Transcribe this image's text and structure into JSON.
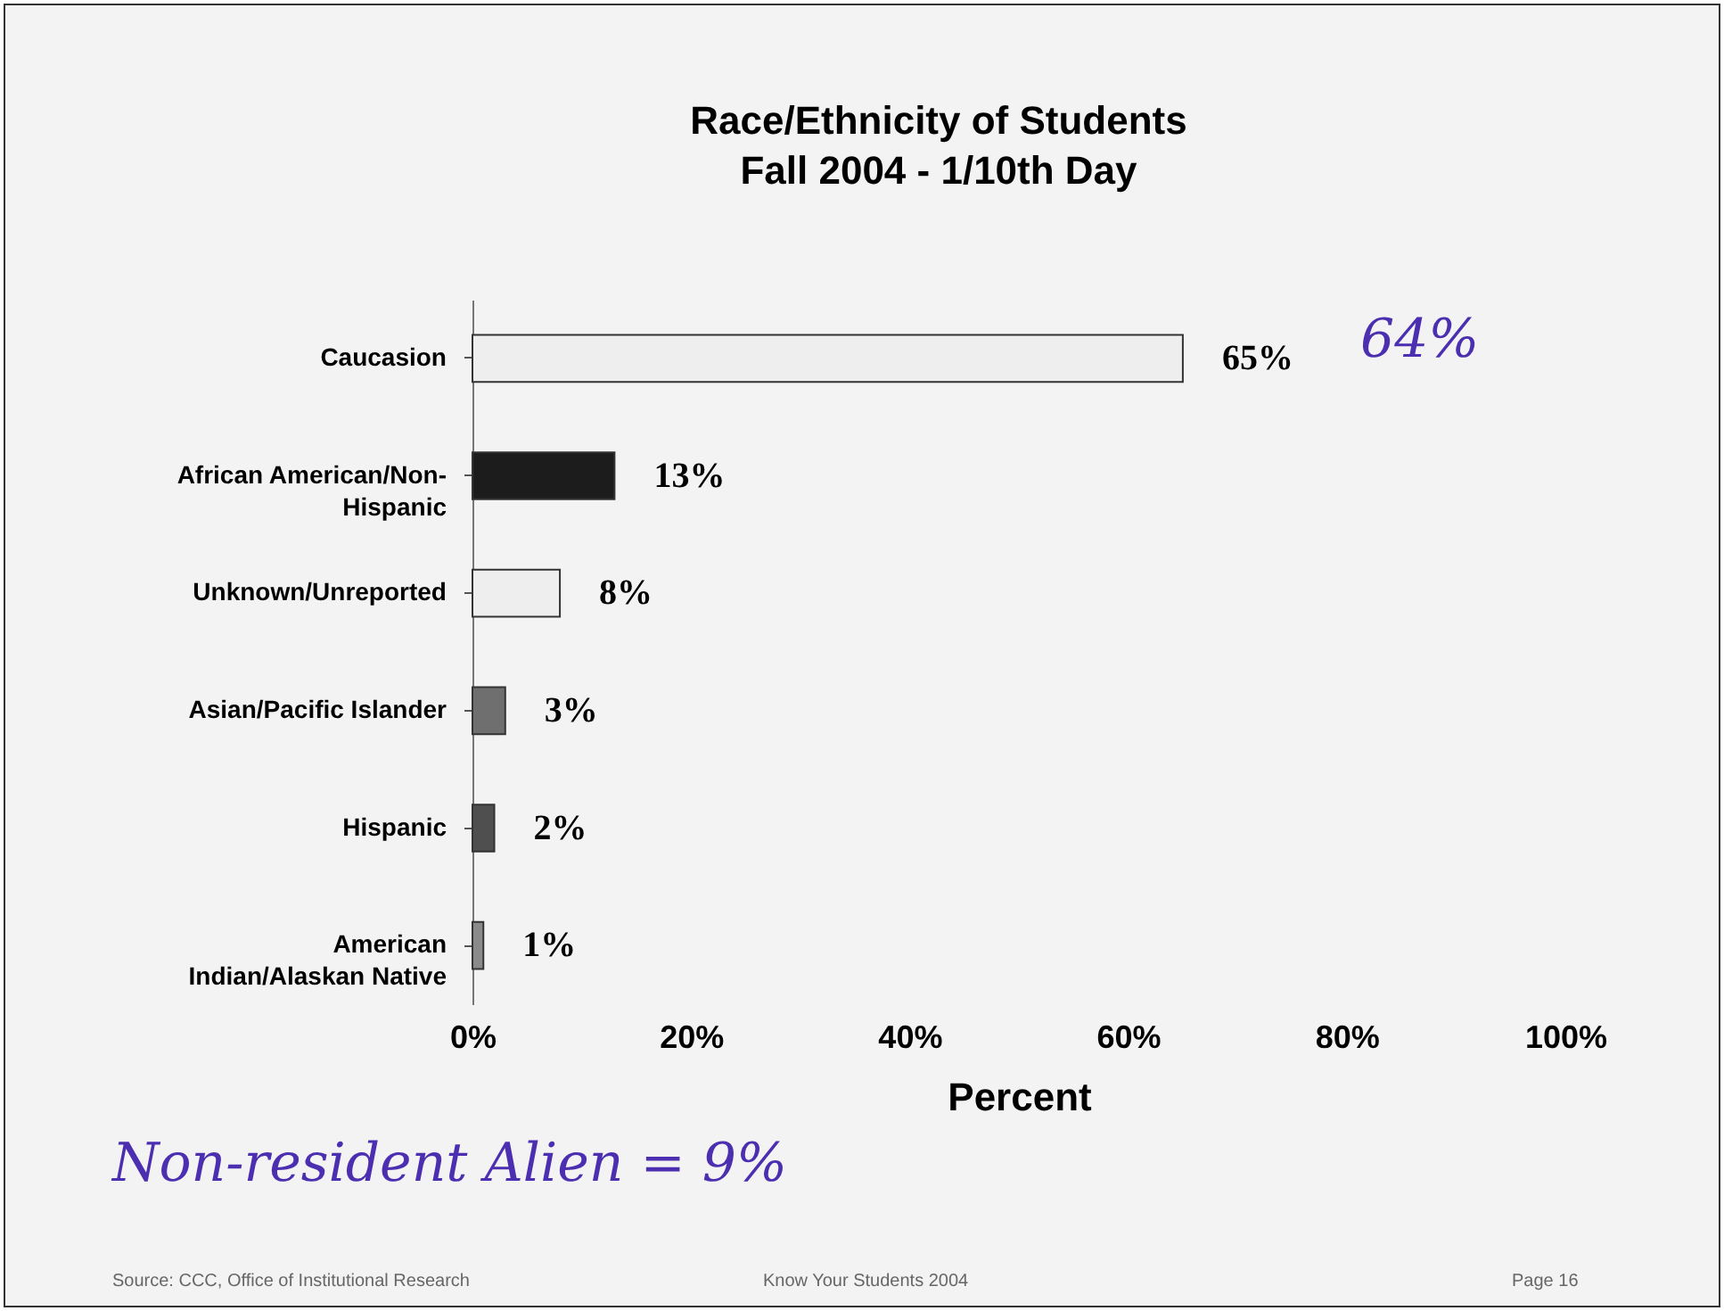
{
  "chart_data": {
    "type": "bar",
    "orientation": "horizontal",
    "title": "Race/Ethnicity of Students",
    "subtitle": "Fall 2004 - 1/10th Day",
    "xlabel": "Percent",
    "categories": [
      "Caucasion",
      "African American/Non-Hispanic",
      "Unknown/Unreported",
      "Asian/Pacific Islander",
      "Hispanic",
      "American Indian/Alaskan Native"
    ],
    "values": [
      65,
      13,
      8,
      3,
      2,
      1
    ],
    "colors": [
      "#eeeeee",
      "#1c1c1c",
      "#eeeeee",
      "#6f6f6f",
      "#4f4f4f",
      "#8a8a8a"
    ],
    "data_labels": true,
    "value_labels": [
      "65%",
      "13%",
      "8%",
      "3%",
      "2%",
      "1%"
    ],
    "xlim": [
      0,
      100
    ],
    "xticks": [
      {
        "value": 0,
        "label": "0%"
      },
      {
        "value": 20,
        "label": "20%"
      },
      {
        "value": 40,
        "label": "40%"
      },
      {
        "value": 60,
        "label": "60%"
      },
      {
        "value": 80,
        "label": "80%"
      },
      {
        "value": 100,
        "label": "100%"
      }
    ],
    "grid": false,
    "annotations": [
      "64%",
      "Non-resident Alien = 9%",
      "Source: CCC, Office of Institutional Research",
      "Know Your Students 2004",
      "Page 16"
    ]
  }
}
